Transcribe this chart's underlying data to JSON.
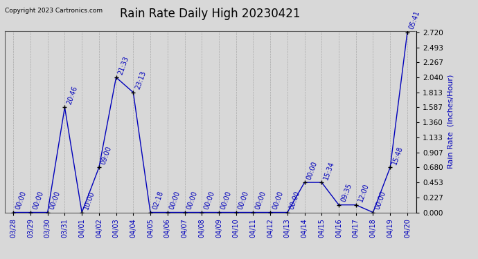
{
  "title": "Rain Rate Daily High 20230421",
  "copyright": "Copyright 2023 Cartronics.com",
  "ylabel": "Rain Rate  (Inches/Hour)",
  "ylim": [
    0.0,
    2.72
  ],
  "yticks": [
    0.0,
    0.227,
    0.453,
    0.68,
    0.907,
    1.133,
    1.36,
    1.587,
    1.813,
    2.04,
    2.267,
    2.493,
    2.72
  ],
  "dates": [
    "03/28",
    "03/29",
    "03/30",
    "03/31",
    "04/01",
    "04/02",
    "04/03",
    "04/04",
    "04/05",
    "04/06",
    "04/07",
    "04/08",
    "04/09",
    "04/10",
    "04/11",
    "04/12",
    "04/13",
    "04/14",
    "04/15",
    "04/16",
    "04/17",
    "04/18",
    "04/19",
    "04/20"
  ],
  "x_indices": [
    0,
    1,
    2,
    3,
    4,
    5,
    6,
    7,
    8,
    9,
    10,
    11,
    12,
    13,
    14,
    15,
    16,
    17,
    18,
    19,
    20,
    21,
    22,
    23
  ],
  "values": [
    0.0,
    0.0,
    0.0,
    1.587,
    0.0,
    0.68,
    2.04,
    1.813,
    0.0,
    0.0,
    0.0,
    0.0,
    0.0,
    0.0,
    0.0,
    0.0,
    0.0,
    0.453,
    0.453,
    0.113,
    0.113,
    0.0,
    0.68,
    2.72
  ],
  "time_labels": [
    "00:00",
    "00:00",
    "00:00",
    "20:46",
    "10:00",
    "09:00",
    "21:33",
    "23:13",
    "02:18",
    "00:00",
    "00:00",
    "00:00",
    "00:00",
    "00:00",
    "00:00",
    "00:00",
    "00:00",
    "00:00",
    "15:34",
    "09:35",
    "12:00",
    "00:00",
    "15:48",
    "05:41"
  ],
  "line_color": "#0000bb",
  "marker_color": "#000000",
  "marker": "+",
  "title_fontsize": 12,
  "axis_label_color": "#0000bb",
  "copyright_color": "#000000",
  "background_color": "#d8d8d8",
  "plot_background": "#d8d8d8",
  "grid_color": "#aaaaaa",
  "tick_label_color": "#0000bb",
  "annotation_color": "#0000bb",
  "annotation_fontsize": 7
}
